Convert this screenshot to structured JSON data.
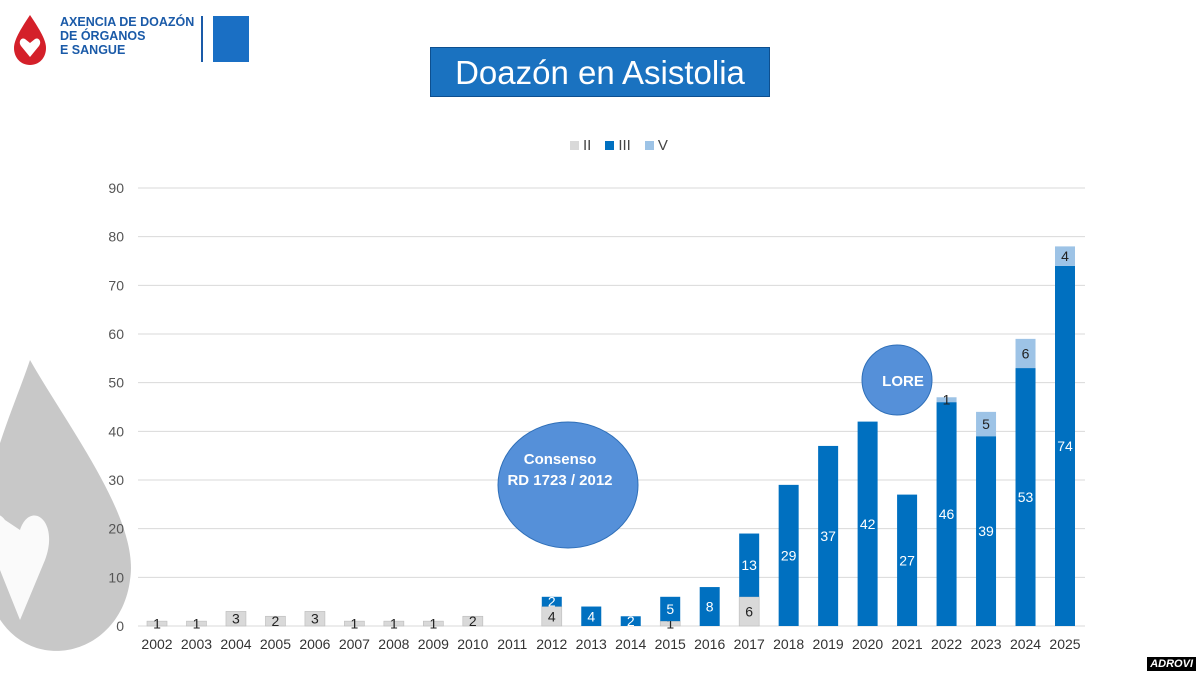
{
  "header": {
    "org_name": [
      "AXENCIA DE DOAZÓN",
      "DE ÓRGANOS",
      "E SANGUE"
    ],
    "title": "Doazón en Asistolia"
  },
  "watermark": "ADROVI",
  "colors": {
    "II": "#d9d9d9",
    "III": "#0070c0",
    "V": "#9dc3e6",
    "title_bg": "#1a72c0",
    "annotation": "#5590d9"
  },
  "annotations": [
    {
      "label": "Consenso",
      "label2": "RD 1723 / 2012",
      "year": "2012"
    },
    {
      "label": "LORE",
      "year": "2021"
    }
  ],
  "chart_data": {
    "type": "bar",
    "stacked": true,
    "title": "Doazón en Asistolia",
    "categories": [
      "2002",
      "2003",
      "2004",
      "2005",
      "2006",
      "2007",
      "2008",
      "2009",
      "2010",
      "2011",
      "2012",
      "2013",
      "2014",
      "2015",
      "2016",
      "2017",
      "2018",
      "2019",
      "2020",
      "2021",
      "2022",
      "2023",
      "2024",
      "2025"
    ],
    "series": [
      {
        "name": "II",
        "values": [
          1,
          1,
          3,
          2,
          3,
          1,
          1,
          1,
          2,
          0,
          4,
          0,
          0,
          1,
          0,
          6,
          0,
          0,
          0,
          0,
          0,
          0,
          0,
          0
        ]
      },
      {
        "name": "III",
        "values": [
          0,
          0,
          0,
          0,
          0,
          0,
          0,
          0,
          0,
          0,
          2,
          4,
          2,
          5,
          8,
          13,
          29,
          37,
          42,
          27,
          46,
          39,
          53,
          74
        ]
      },
      {
        "name": "V",
        "values": [
          0,
          0,
          0,
          0,
          0,
          0,
          0,
          0,
          0,
          0,
          0,
          0,
          0,
          0,
          0,
          0,
          0,
          0,
          0,
          0,
          1,
          5,
          6,
          4
        ]
      }
    ],
    "ylim": [
      0,
      90
    ],
    "yticks": [
      0,
      10,
      20,
      30,
      40,
      50,
      60,
      70,
      80,
      90
    ],
    "grid": true,
    "legend": "top-center",
    "xlabel": "",
    "ylabel": ""
  }
}
